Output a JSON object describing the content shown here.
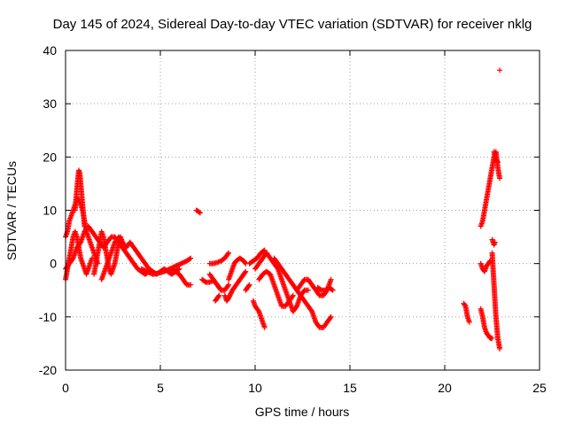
{
  "chart_data": {
    "type": "scatter",
    "title": "Day 145 of 2024, Sidereal Day-to-day VTEC variation (SDTVAR) for receiver nklg",
    "xlabel": "GPS time / hours",
    "ylabel": "SDTVAR / TECUs",
    "xlim": [
      0,
      25
    ],
    "ylim": [
      -20,
      40
    ],
    "xticks": [
      "0",
      "5",
      "10",
      "15",
      "20",
      "25"
    ],
    "yticks": [
      "-20",
      "-10",
      "0",
      "10",
      "20",
      "30",
      "40"
    ],
    "grid": true,
    "marker": "plus",
    "color": "#ff0000",
    "segments": [
      {
        "points": [
          [
            0.0,
            -3
          ],
          [
            0.1,
            -1
          ],
          [
            0.2,
            1
          ],
          [
            0.3,
            3
          ],
          [
            0.4,
            5
          ],
          [
            0.5,
            6
          ],
          [
            0.6,
            5
          ],
          [
            0.7,
            3
          ],
          [
            0.8,
            1
          ],
          [
            0.9,
            0
          ],
          [
            1.0,
            -1
          ],
          [
            1.1,
            -2
          ],
          [
            1.2,
            -1
          ],
          [
            1.3,
            0
          ],
          [
            1.4,
            1
          ]
        ]
      },
      {
        "points": [
          [
            0.0,
            5
          ],
          [
            0.1,
            6
          ],
          [
            0.2,
            8
          ],
          [
            0.3,
            9
          ],
          [
            0.4,
            10
          ],
          [
            0.5,
            11
          ],
          [
            0.6,
            12
          ],
          [
            0.7,
            12
          ],
          [
            0.8,
            11
          ],
          [
            0.9,
            10
          ],
          [
            1.0,
            8
          ],
          [
            1.1,
            6
          ],
          [
            1.2,
            5
          ],
          [
            1.3,
            4
          ],
          [
            1.4,
            3
          ],
          [
            1.5,
            2
          ],
          [
            1.6,
            1
          ],
          [
            1.7,
            0
          ]
        ]
      },
      {
        "points": [
          [
            0.5,
            10
          ],
          [
            0.55,
            12
          ],
          [
            0.6,
            14
          ],
          [
            0.65,
            16
          ],
          [
            0.7,
            17.5
          ],
          [
            0.75,
            17
          ],
          [
            0.8,
            15
          ],
          [
            0.85,
            13
          ],
          [
            0.9,
            11
          ],
          [
            0.95,
            9
          ],
          [
            1.0,
            7
          ]
        ]
      },
      {
        "points": [
          [
            0.0,
            -1
          ],
          [
            0.2,
            0
          ],
          [
            0.4,
            1
          ],
          [
            0.6,
            3
          ],
          [
            0.8,
            4
          ],
          [
            1.0,
            6
          ],
          [
            1.2,
            7
          ],
          [
            1.4,
            6
          ],
          [
            1.6,
            5
          ],
          [
            1.8,
            4
          ],
          [
            2.0,
            3
          ],
          [
            2.2,
            4
          ],
          [
            2.4,
            5
          ],
          [
            2.6,
            5
          ],
          [
            2.8,
            4
          ],
          [
            3.0,
            3
          ],
          [
            3.2,
            2
          ],
          [
            3.4,
            1
          ],
          [
            3.6,
            0
          ],
          [
            3.8,
            -1
          ],
          [
            4.0,
            -1.5
          ],
          [
            4.2,
            -2
          ],
          [
            4.4,
            -1.5
          ]
        ]
      },
      {
        "points": [
          [
            1.5,
            -2
          ],
          [
            1.6,
            0
          ],
          [
            1.7,
            2
          ],
          [
            1.8,
            4
          ],
          [
            1.9,
            6
          ],
          [
            2.0,
            5
          ],
          [
            2.1,
            3
          ],
          [
            2.2,
            1
          ],
          [
            2.3,
            -1
          ],
          [
            2.4,
            -2
          ],
          [
            2.5,
            -1
          ],
          [
            2.6,
            0
          ],
          [
            2.7,
            2
          ],
          [
            2.8,
            4
          ],
          [
            2.9,
            5
          ],
          [
            3.0,
            4
          ]
        ]
      },
      {
        "points": [
          [
            1.9,
            -3
          ],
          [
            2.0,
            -2
          ],
          [
            2.2,
            0
          ],
          [
            2.4,
            2
          ],
          [
            2.6,
            4
          ],
          [
            2.8,
            5
          ],
          [
            3.0,
            4
          ],
          [
            3.2,
            3
          ],
          [
            3.4,
            4
          ],
          [
            3.6,
            3
          ],
          [
            3.8,
            2
          ],
          [
            4.0,
            1
          ],
          [
            4.2,
            0
          ],
          [
            4.4,
            -1
          ],
          [
            4.6,
            -1.5
          ],
          [
            4.8,
            -2
          ],
          [
            5.0,
            -1.5
          ],
          [
            5.2,
            -1
          ],
          [
            5.4,
            -1.5
          ],
          [
            5.6,
            -2
          ],
          [
            5.8,
            -1.5
          ],
          [
            6.0,
            -1
          ]
        ]
      },
      {
        "points": [
          [
            4.0,
            -1
          ],
          [
            4.3,
            -1.5
          ],
          [
            4.6,
            -2
          ],
          [
            4.9,
            -1.8
          ],
          [
            5.2,
            -1.5
          ],
          [
            5.5,
            -1
          ],
          [
            5.8,
            -0.5
          ],
          [
            6.1,
            0
          ],
          [
            6.4,
            0.5
          ],
          [
            6.6,
            1
          ]
        ]
      },
      {
        "points": [
          [
            5.6,
            -1
          ],
          [
            5.8,
            -1.5
          ],
          [
            6.0,
            -2
          ],
          [
            6.2,
            -3
          ],
          [
            6.4,
            -4
          ],
          [
            6.6,
            -4
          ]
        ]
      },
      {
        "points": [
          [
            6.9,
            10
          ],
          [
            7.0,
            9.8
          ],
          [
            7.1,
            9.5
          ]
        ]
      },
      {
        "points": [
          [
            7.2,
            -3
          ],
          [
            7.4,
            -3.5
          ],
          [
            7.6,
            -3.5
          ],
          [
            7.8,
            -3.2
          ],
          [
            8.0,
            -4
          ],
          [
            8.2,
            -5
          ]
        ]
      },
      {
        "points": [
          [
            7.6,
            -2
          ],
          [
            7.8,
            -3
          ],
          [
            8.0,
            -4
          ],
          [
            8.2,
            -5
          ],
          [
            8.4,
            -5
          ],
          [
            8.6,
            -4
          ]
        ]
      },
      {
        "points": [
          [
            7.6,
            0
          ],
          [
            7.8,
            0
          ],
          [
            8.0,
            0.2
          ],
          [
            8.2,
            0.5
          ],
          [
            8.4,
            1
          ],
          [
            8.6,
            2
          ]
        ]
      },
      {
        "points": [
          [
            7.9,
            -7
          ],
          [
            8.0,
            -6.5
          ],
          [
            8.1,
            -6
          ]
        ]
      },
      {
        "points": [
          [
            8.6,
            -3
          ],
          [
            8.7,
            -2
          ],
          [
            8.8,
            -1
          ],
          [
            8.9,
            0
          ],
          [
            9.0,
            0.5
          ],
          [
            9.2,
            1
          ],
          [
            9.4,
            0.5
          ],
          [
            9.5,
            0
          ]
        ]
      },
      {
        "points": [
          [
            8.4,
            -6
          ],
          [
            8.5,
            -7
          ],
          [
            8.6,
            -6.5
          ],
          [
            8.8,
            -5
          ],
          [
            9.0,
            -4
          ],
          [
            9.2,
            -3
          ],
          [
            9.4,
            -2
          ],
          [
            9.5,
            -1.5
          ]
        ]
      },
      {
        "points": [
          [
            9.7,
            0
          ],
          [
            9.9,
            0.5
          ],
          [
            10.1,
            1
          ],
          [
            10.3,
            2
          ],
          [
            10.5,
            2.5
          ]
        ]
      },
      {
        "points": [
          [
            9.5,
            -5
          ],
          [
            9.6,
            -4.5
          ],
          [
            9.7,
            -4
          ]
        ]
      },
      {
        "points": [
          [
            9.9,
            -7
          ],
          [
            10.0,
            -8
          ],
          [
            10.2,
            -9
          ],
          [
            10.4,
            -11
          ],
          [
            10.5,
            -12
          ]
        ]
      },
      {
        "points": [
          [
            10.0,
            -1
          ],
          [
            10.2,
            0
          ],
          [
            10.4,
            1
          ],
          [
            10.6,
            2
          ],
          [
            10.8,
            1
          ],
          [
            11.0,
            0
          ],
          [
            11.2,
            -1
          ],
          [
            11.4,
            -3
          ],
          [
            11.6,
            -5
          ],
          [
            11.8,
            -7
          ],
          [
            12.0,
            -9
          ],
          [
            12.2,
            -8
          ],
          [
            12.4,
            -6
          ],
          [
            12.6,
            -5
          ],
          [
            12.8,
            -5
          ]
        ]
      },
      {
        "points": [
          [
            10.2,
            -3
          ],
          [
            10.4,
            -2
          ],
          [
            10.6,
            -1.5
          ],
          [
            10.8,
            -2
          ],
          [
            11.0,
            -4
          ],
          [
            11.2,
            -6
          ],
          [
            11.4,
            -8
          ],
          [
            11.6,
            -8
          ],
          [
            11.8,
            -7
          ],
          [
            12.0,
            -6
          ]
        ]
      },
      {
        "points": [
          [
            11.0,
            1
          ],
          [
            11.2,
            0
          ],
          [
            11.4,
            -1
          ],
          [
            11.6,
            -2
          ],
          [
            11.8,
            -3
          ],
          [
            12.0,
            -4
          ],
          [
            12.2,
            -5
          ],
          [
            12.4,
            -4
          ],
          [
            12.6,
            -3
          ],
          [
            12.8,
            -3
          ],
          [
            13.0,
            -4
          ],
          [
            13.2,
            -5
          ],
          [
            13.4,
            -6
          ],
          [
            13.6,
            -6
          ],
          [
            13.8,
            -5
          ],
          [
            14.0,
            -3
          ]
        ]
      },
      {
        "points": [
          [
            12.2,
            -5
          ],
          [
            12.4,
            -6
          ],
          [
            12.6,
            -7
          ],
          [
            12.8,
            -8
          ],
          [
            13.0,
            -9
          ],
          [
            13.2,
            -11
          ],
          [
            13.4,
            -12
          ],
          [
            13.6,
            -12
          ],
          [
            13.8,
            -11
          ],
          [
            14.0,
            -10
          ]
        ]
      },
      {
        "points": [
          [
            13.3,
            -4.5
          ],
          [
            13.5,
            -5
          ],
          [
            13.7,
            -5
          ],
          [
            13.9,
            -4.5
          ],
          [
            14.1,
            -5
          ]
        ]
      },
      {
        "points": [
          [
            21.0,
            -7.5
          ],
          [
            21.1,
            -8
          ],
          [
            21.2,
            -10
          ],
          [
            21.3,
            -11
          ]
        ]
      },
      {
        "points": [
          [
            21.9,
            -8.5
          ],
          [
            22.0,
            -10
          ],
          [
            22.1,
            -12
          ],
          [
            22.2,
            -13
          ],
          [
            22.3,
            -13.5
          ],
          [
            22.4,
            -14
          ],
          [
            22.5,
            -14
          ]
        ]
      },
      {
        "points": [
          [
            21.9,
            7
          ],
          [
            22.0,
            8
          ],
          [
            22.1,
            10
          ],
          [
            22.2,
            12
          ],
          [
            22.3,
            14
          ],
          [
            22.4,
            16
          ],
          [
            22.5,
            18
          ],
          [
            22.6,
            20
          ],
          [
            22.7,
            21
          ],
          [
            22.8,
            18
          ],
          [
            22.9,
            16
          ]
        ]
      },
      {
        "points": [
          [
            21.9,
            0
          ],
          [
            22.0,
            -1
          ],
          [
            22.1,
            -1.5
          ],
          [
            22.2,
            -0.5
          ],
          [
            22.3,
            0
          ],
          [
            22.4,
            0.5
          ]
        ]
      },
      {
        "points": [
          [
            22.5,
            2
          ],
          [
            22.55,
            -1
          ],
          [
            22.6,
            -4
          ],
          [
            22.65,
            -7
          ],
          [
            22.7,
            -10
          ],
          [
            22.75,
            -12
          ],
          [
            22.8,
            -14
          ],
          [
            22.85,
            -15
          ],
          [
            22.9,
            -16
          ]
        ]
      },
      {
        "points": [
          [
            22.5,
            4.5
          ],
          [
            22.55,
            4
          ],
          [
            22.6,
            3.5
          ],
          [
            22.65,
            4
          ]
        ]
      },
      {
        "points": [
          [
            22.6,
            21
          ],
          [
            22.65,
            20
          ],
          [
            22.7,
            19.5
          ],
          [
            22.8,
            19
          ]
        ]
      },
      {
        "points": [
          [
            22.9,
            36.3
          ]
        ]
      }
    ]
  }
}
